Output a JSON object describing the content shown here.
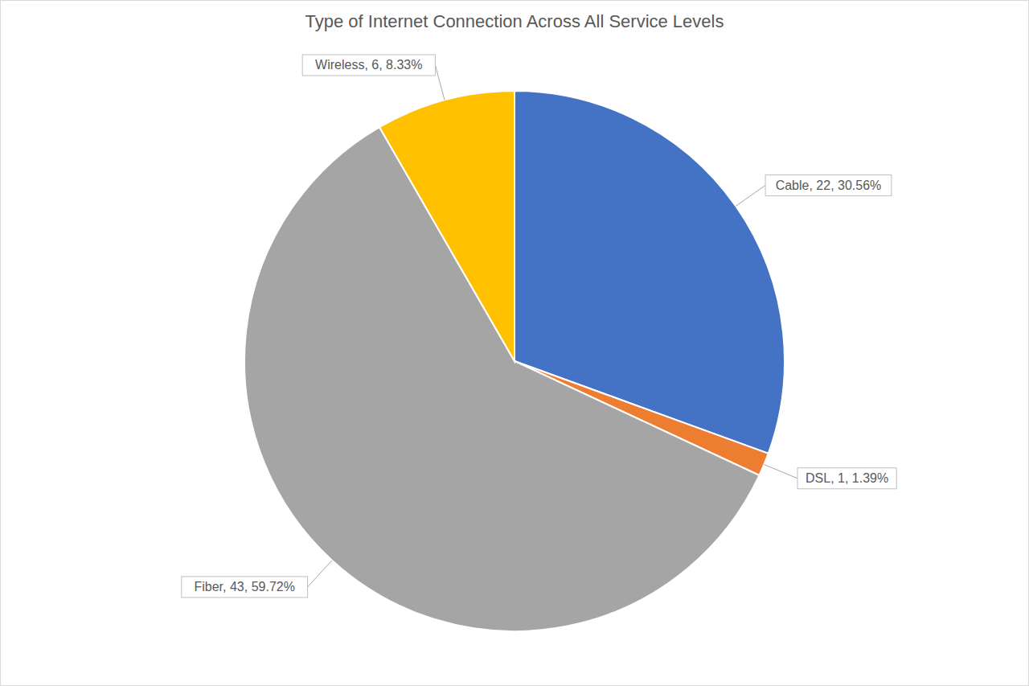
{
  "chart_data": {
    "type": "pie",
    "title": "Type of Internet Connection Across All Service Levels",
    "categories": [
      "Cable",
      "DSL",
      "Fiber",
      "Wireless"
    ],
    "values": [
      22,
      1,
      43,
      6
    ],
    "value_labels": [
      "Cable, 22, 30.56%",
      "DSL, 1, 1.39%",
      "Fiber, 43, 59.72%",
      "Wireless, 6, 8.33%"
    ],
    "colors": [
      "#4472c4",
      "#ed7d31",
      "#a5a5a5",
      "#ffc000"
    ],
    "data_labels": true
  }
}
